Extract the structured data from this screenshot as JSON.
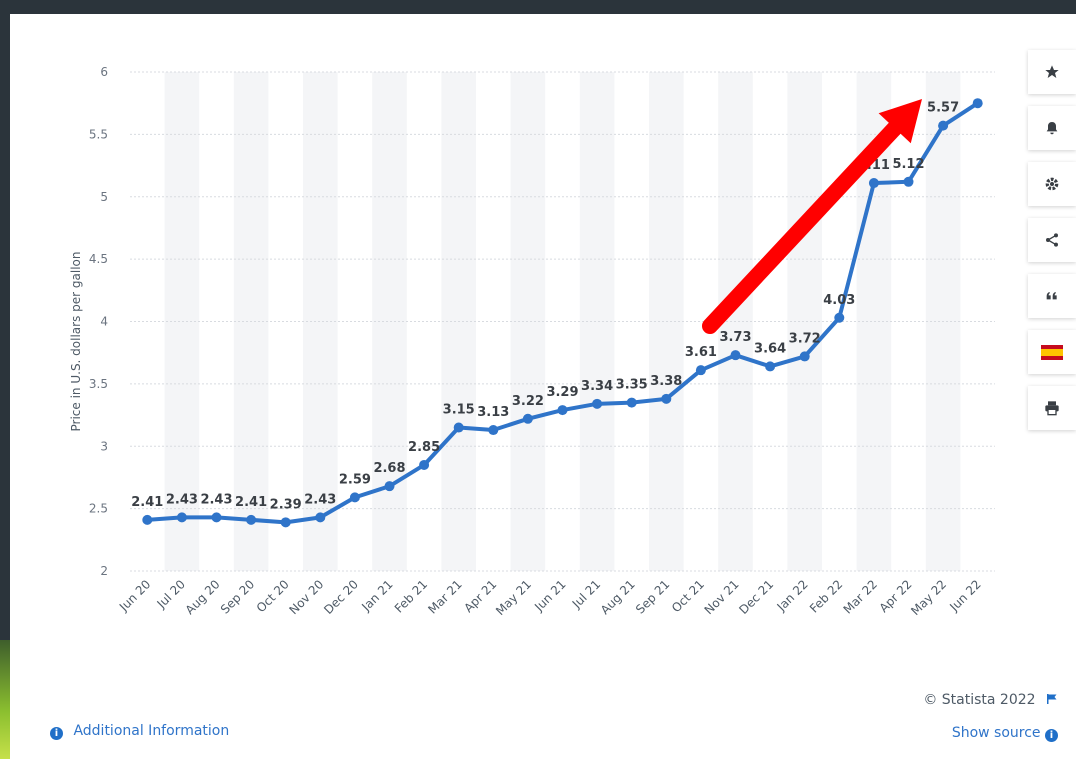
{
  "chart_data": {
    "type": "line",
    "categories": [
      "Jun 20",
      "Jul 20",
      "Aug 20",
      "Sep 20",
      "Oct 20",
      "Nov 20",
      "Dec 20",
      "Jan 21",
      "Feb 21",
      "Mar 21",
      "Apr 21",
      "May 21",
      "Jun 21",
      "Jul 21",
      "Aug 21",
      "Sep 21",
      "Oct 21",
      "Nov 21",
      "Dec 21",
      "Jan 22",
      "Feb 22",
      "Mar 22",
      "Apr 22",
      "May 22",
      "Jun 22"
    ],
    "values": [
      2.41,
      2.43,
      2.43,
      2.41,
      2.39,
      2.43,
      2.59,
      2.68,
      2.85,
      3.15,
      3.13,
      3.22,
      3.29,
      3.34,
      3.35,
      3.38,
      3.61,
      3.73,
      3.64,
      3.72,
      4.03,
      5.11,
      5.12,
      5.57,
      5.75
    ],
    "value_labels": [
      "2.41",
      "2.43",
      "2.43",
      "2.41",
      "2.39",
      "2.43",
      "2.59",
      "2.68",
      "2.85",
      "3.15",
      "3.13",
      "3.22",
      "3.29",
      "3.34",
      "3.35",
      "3.38",
      "3.61",
      "3.73",
      "3.64",
      "3.72",
      "4.03",
      "5.11",
      "5.12",
      "5.57",
      ""
    ],
    "title": "",
    "xlabel": "",
    "ylabel": "Price in U.S. dollars per gallon",
    "ylim": [
      2,
      6
    ],
    "yticks": [
      2,
      2.5,
      3,
      3.5,
      4,
      4.5,
      5,
      5.5,
      6
    ],
    "ytick_labels": [
      "2",
      "2.5",
      "3",
      "3.5",
      "4",
      "4.5",
      "5",
      "5.5",
      "6"
    ],
    "grid": true,
    "line_color": "#2f74c9",
    "annotation_arrow_color": "#ff0000"
  },
  "toolbar": {
    "items": [
      {
        "icon": "star-icon"
      },
      {
        "icon": "bell-icon"
      },
      {
        "icon": "gear-icon"
      },
      {
        "icon": "share-icon"
      },
      {
        "icon": "quote-icon"
      },
      {
        "icon": "spain-flag-icon"
      },
      {
        "icon": "print-icon"
      }
    ]
  },
  "footer": {
    "credit": "© Statista 2022",
    "show_source": "Show source",
    "additional_info": "Additional Information"
  }
}
